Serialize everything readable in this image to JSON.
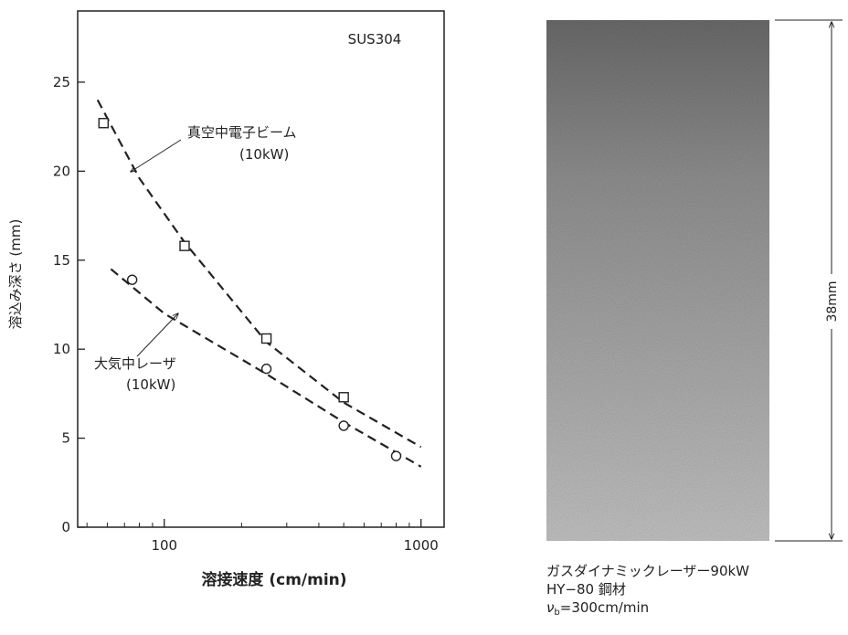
{
  "chart_data": {
    "type": "scatter",
    "annotation": "SUS304",
    "x_label": "溶接速度 (cm/min)",
    "y_label": "溶込み深さ (mm)",
    "xscale": "log",
    "xlim": [
      46,
      1230
    ],
    "ylim": [
      0,
      29
    ],
    "xticks": [
      100,
      1000
    ],
    "xminorticks": [
      50,
      60,
      70,
      80,
      90,
      200,
      300,
      400,
      500,
      600,
      700,
      800,
      900
    ],
    "yticks": [
      0,
      5,
      10,
      15,
      20,
      25
    ],
    "series": [
      {
        "name": "真空中電子ビーム",
        "sublabel": "(10kW)",
        "marker": "square",
        "color": "#222",
        "x": [
          58,
          120,
          250,
          500
        ],
        "values": [
          22.7,
          15.8,
          10.6,
          7.3
        ],
        "curve_x": [
          55,
          80,
          120,
          250,
          500,
          1000
        ],
        "curve_values": [
          24,
          19.6,
          16,
          10.4,
          7.0,
          4.5
        ]
      },
      {
        "name": "大気中レーザ",
        "sublabel": "(10kW)",
        "marker": "circle",
        "color": "#222",
        "x": [
          75,
          250,
          500,
          800
        ],
        "values": [
          13.9,
          8.9,
          5.7,
          4.0
        ],
        "curve_x": [
          62,
          100,
          250,
          500,
          1000
        ],
        "curve_values": [
          14.5,
          12.0,
          8.6,
          5.9,
          3.4
        ]
      }
    ]
  },
  "photo": {
    "dimension": "38mm",
    "caption": [
      "ガスダイナミックレーザー90kW",
      "HY−80 鋼材"
    ],
    "speed": {
      "symbol": "ν",
      "subscript": "b",
      "text": "=300cm/min"
    }
  }
}
